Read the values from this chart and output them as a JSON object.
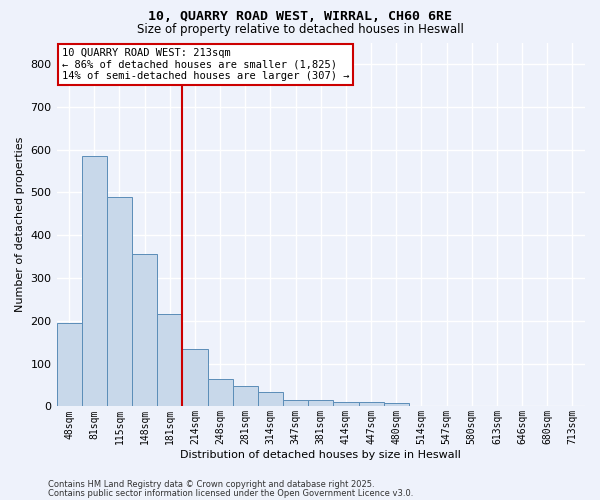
{
  "title_line1": "10, QUARRY ROAD WEST, WIRRAL, CH60 6RE",
  "title_line2": "Size of property relative to detached houses in Heswall",
  "xlabel": "Distribution of detached houses by size in Heswall",
  "ylabel": "Number of detached properties",
  "bar_labels": [
    "48sqm",
    "81sqm",
    "115sqm",
    "148sqm",
    "181sqm",
    "214sqm",
    "248sqm",
    "281sqm",
    "314sqm",
    "347sqm",
    "381sqm",
    "414sqm",
    "447sqm",
    "480sqm",
    "514sqm",
    "547sqm",
    "580sqm",
    "613sqm",
    "646sqm",
    "680sqm",
    "713sqm"
  ],
  "bar_values": [
    195,
    585,
    490,
    355,
    215,
    133,
    65,
    48,
    33,
    15,
    15,
    10,
    10,
    8,
    0,
    0,
    0,
    0,
    0,
    0,
    0
  ],
  "bar_color": "#c8d8ea",
  "bar_edge_color": "#5b8db8",
  "background_color": "#eef2fb",
  "grid_color": "#ffffff",
  "vline_index": 5,
  "vline_color": "#cc0000",
  "annotation_line1": "10 QUARRY ROAD WEST: 213sqm",
  "annotation_line2": "← 86% of detached houses are smaller (1,825)",
  "annotation_line3": "14% of semi-detached houses are larger (307) →",
  "annotation_box_edge_color": "#cc0000",
  "ylim": [
    0,
    850
  ],
  "yticks": [
    0,
    100,
    200,
    300,
    400,
    500,
    600,
    700,
    800
  ],
  "footer_line1": "Contains HM Land Registry data © Crown copyright and database right 2025.",
  "footer_line2": "Contains public sector information licensed under the Open Government Licence v3.0."
}
